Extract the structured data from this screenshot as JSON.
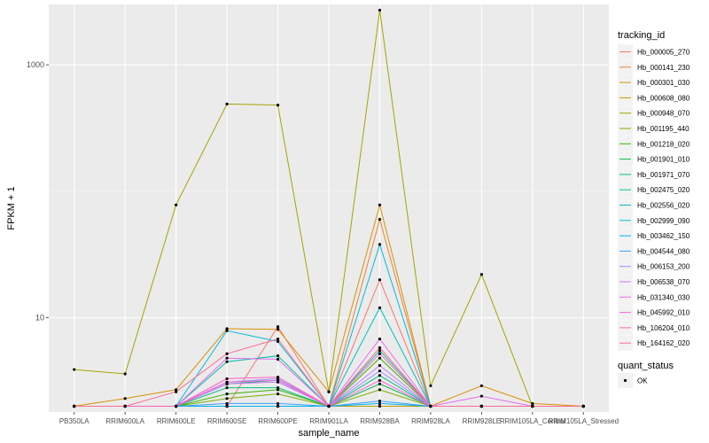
{
  "chart_data": {
    "type": "line",
    "xlabel": "sample_name",
    "ylabel": "FPKM + 1",
    "y_scale": "log10",
    "ylim": [
      1.8,
      3000
    ],
    "y_ticks": [
      {
        "value": 10,
        "label": "10"
      },
      {
        "value": 1000,
        "label": "1000"
      }
    ],
    "grid": true,
    "legend_position": "right",
    "categories": [
      "PB350LA",
      "RRIM600LA",
      "RRIM600LE",
      "RRIM600SE",
      "RRIM600PE",
      "RRIM901LA",
      "RRIM928BA",
      "RRIM928LA",
      "RRIM928LE",
      "RRIM105LA_Control",
      "RRIM105LA_Stressed"
    ],
    "legend_title": "tracking_id",
    "shape_legend": {
      "title": "quant_status",
      "entries": [
        "OK"
      ]
    },
    "series": [
      {
        "name": "Hb_000005_270",
        "color": "#F8766D",
        "values": [
          2.0,
          2.0,
          2.0,
          2.0,
          8.5,
          2.0,
          20.0,
          2.0,
          2.0,
          2.0,
          2.0
        ]
      },
      {
        "name": "Hb_000141_230",
        "color": "#EA8331",
        "values": [
          2.0,
          2.0,
          2.0,
          2.0,
          2.0,
          2.0,
          60.0,
          2.0,
          2.0,
          2.0,
          2.0
        ]
      },
      {
        "name": "Hb_000301_030",
        "color": "#D89000",
        "values": [
          2.0,
          2.3,
          2.7,
          8.2,
          8.1,
          2.6,
          78.0,
          2.0,
          2.9,
          2.1,
          2.0
        ]
      },
      {
        "name": "Hb_000608_080",
        "color": "#C09B00",
        "values": [
          2.0,
          2.0,
          2.0,
          2.0,
          2.0,
          2.0,
          2.0,
          2.0,
          2.0,
          2.0,
          2.0
        ]
      },
      {
        "name": "Hb_000948_070",
        "color": "#A3A500",
        "values": [
          3.9,
          3.6,
          78.0,
          490.0,
          480.0,
          2.6,
          2700.0,
          2.9,
          22.0,
          2.0,
          2.0
        ]
      },
      {
        "name": "Hb_001195_440",
        "color": "#7CAE00",
        "values": [
          2.0,
          2.0,
          2.0,
          2.3,
          2.5,
          2.0,
          2.7,
          2.0,
          2.0,
          2.0,
          2.0
        ]
      },
      {
        "name": "Hb_001218_020",
        "color": "#39B600",
        "values": [
          2.0,
          2.0,
          2.0,
          2.5,
          2.7,
          2.0,
          4.8,
          2.0,
          2.0,
          2.0,
          2.0
        ]
      },
      {
        "name": "Hb_001901_010",
        "color": "#00BB4E",
        "values": [
          2.0,
          2.0,
          2.0,
          3.0,
          3.2,
          2.0,
          3.0,
          2.0,
          2.0,
          2.0,
          2.0
        ]
      },
      {
        "name": "Hb_001971_070",
        "color": "#00BF7D",
        "values": [
          2.0,
          2.0,
          2.0,
          2.8,
          2.8,
          2.0,
          3.5,
          2.0,
          2.0,
          2.0,
          2.0
        ]
      },
      {
        "name": "Hb_002475_020",
        "color": "#00C1A3",
        "values": [
          2.0,
          2.0,
          2.0,
          4.5,
          5.0,
          2.0,
          5.5,
          2.0,
          2.0,
          2.0,
          2.0
        ]
      },
      {
        "name": "Hb_002556_020",
        "color": "#00BFC4",
        "values": [
          2.0,
          2.0,
          2.0,
          2.0,
          2.0,
          2.0,
          12.0,
          2.0,
          2.0,
          2.0,
          2.0
        ]
      },
      {
        "name": "Hb_002999_090",
        "color": "#00BAE0",
        "values": [
          2.0,
          2.0,
          2.0,
          7.9,
          6.5,
          2.0,
          38.0,
          2.0,
          2.0,
          2.0,
          2.0
        ]
      },
      {
        "name": "Hb_003462_150",
        "color": "#00B0F6",
        "values": [
          2.0,
          2.0,
          2.0,
          2.0,
          2.0,
          2.0,
          2.1,
          2.0,
          2.0,
          2.0,
          2.0
        ]
      },
      {
        "name": "Hb_004544_080",
        "color": "#35A2FF",
        "values": [
          2.0,
          2.0,
          2.0,
          2.1,
          2.1,
          2.0,
          2.2,
          2.0,
          2.0,
          2.0,
          2.0
        ]
      },
      {
        "name": "Hb_006153_200",
        "color": "#9590FF",
        "values": [
          2.0,
          2.0,
          2.0,
          3.1,
          3.3,
          2.0,
          3.8,
          2.0,
          2.0,
          2.0,
          2.0
        ]
      },
      {
        "name": "Hb_006538_070",
        "color": "#C77CFF",
        "values": [
          2.0,
          2.0,
          2.0,
          3.0,
          3.1,
          2.0,
          4.2,
          2.0,
          2.0,
          2.0,
          2.0
        ]
      },
      {
        "name": "Hb_031340_030",
        "color": "#E76BF3",
        "values": [
          2.0,
          2.0,
          2.0,
          4.8,
          4.7,
          2.0,
          6.8,
          2.0,
          2.4,
          2.0,
          2.0
        ]
      },
      {
        "name": "Hb_045992_010",
        "color": "#FA62DB",
        "values": [
          2.0,
          2.0,
          2.0,
          3.1,
          3.2,
          2.0,
          3.2,
          2.0,
          2.0,
          2.0,
          2.0
        ]
      },
      {
        "name": "Hb_106204_010",
        "color": "#FF62BC",
        "values": [
          2.0,
          2.0,
          2.0,
          3.3,
          3.4,
          2.0,
          5.2,
          2.0,
          2.0,
          2.0,
          2.0
        ]
      },
      {
        "name": "Hb_164162_020",
        "color": "#FF6C91",
        "values": [
          2.0,
          2.0,
          2.6,
          5.2,
          6.8,
          2.0,
          5.8,
          2.0,
          2.0,
          2.0,
          2.0
        ]
      }
    ]
  }
}
